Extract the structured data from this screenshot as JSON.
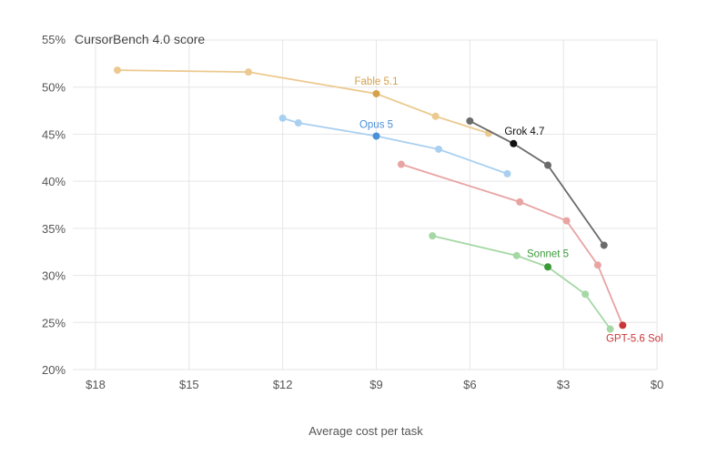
{
  "chart_data": {
    "type": "line",
    "title": "CursorBench 4.0 score",
    "xlabel": "Average cost per task",
    "ylabel": "",
    "x_reversed": true,
    "xlim": [
      0,
      21
    ],
    "ylim": [
      20,
      55
    ],
    "x_ticks": [
      18,
      15,
      12,
      9,
      6,
      3,
      0
    ],
    "x_tick_labels": [
      "$18",
      "$15",
      "$12",
      "$9",
      "$6",
      "$3",
      "$0"
    ],
    "y_ticks": [
      20,
      25,
      30,
      35,
      40,
      45,
      50,
      55
    ],
    "y_tick_labels": [
      "20%",
      "25%",
      "30%",
      "35%",
      "40%",
      "45%",
      "50%",
      "55%"
    ],
    "grid": true,
    "series": [
      {
        "name": "Fable 5.1",
        "color": "#d4a24c",
        "light_color": "#ecc98e",
        "highlight_index": 2,
        "points": [
          {
            "x": 17.3,
            "y": 51.8
          },
          {
            "x": 13.1,
            "y": 51.6
          },
          {
            "x": 9.0,
            "y": 49.3
          },
          {
            "x": 7.1,
            "y": 46.9
          },
          {
            "x": 5.4,
            "y": 45.1
          }
        ]
      },
      {
        "name": "Opus 5",
        "color": "#4a90d9",
        "light_color": "#a9d0f0",
        "highlight_index": 2,
        "points": [
          {
            "x": 12.0,
            "y": 46.7
          },
          {
            "x": 11.5,
            "y": 46.2
          },
          {
            "x": 9.0,
            "y": 44.8
          },
          {
            "x": 7.0,
            "y": 43.4
          },
          {
            "x": 4.8,
            "y": 40.8
          }
        ]
      },
      {
        "name": "Grok 4.7",
        "color": "#111111",
        "light_color": "#6b6b6b",
        "highlight_index": 1,
        "points": [
          {
            "x": 6.0,
            "y": 46.4
          },
          {
            "x": 4.6,
            "y": 44.0
          },
          {
            "x": 3.5,
            "y": 41.7
          },
          {
            "x": 1.7,
            "y": 33.2
          }
        ]
      },
      {
        "name": "GPT-5.6 Sol",
        "color": "#c9373a",
        "light_color": "#e8a3a3",
        "highlight_index": 4,
        "points": [
          {
            "x": 8.2,
            "y": 41.8
          },
          {
            "x": 4.4,
            "y": 37.8
          },
          {
            "x": 2.9,
            "y": 35.8
          },
          {
            "x": 1.9,
            "y": 31.1
          },
          {
            "x": 1.1,
            "y": 24.7
          }
        ]
      },
      {
        "name": "Sonnet 5",
        "color": "#3a9a3a",
        "light_color": "#a5d8a5",
        "highlight_index": 2,
        "points": [
          {
            "x": 7.2,
            "y": 34.2
          },
          {
            "x": 4.5,
            "y": 32.1
          },
          {
            "x": 3.5,
            "y": 30.9
          },
          {
            "x": 2.3,
            "y": 28.0
          },
          {
            "x": 1.5,
            "y": 24.3
          }
        ]
      }
    ]
  }
}
